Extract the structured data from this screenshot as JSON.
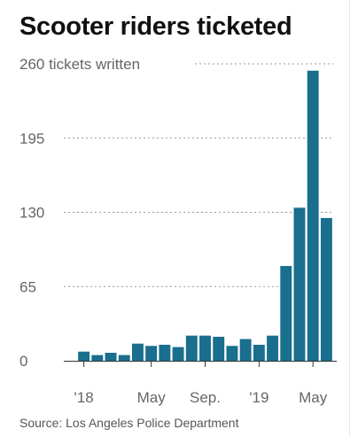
{
  "title": "Scooter riders ticketed",
  "source": "Source: Los Angeles Police Department",
  "colors": {
    "bar": "#1a6e8e",
    "grid": "#999999",
    "text": "#666666"
  },
  "chart_data": {
    "type": "bar",
    "title": "Scooter riders ticketed",
    "ylim": [
      0,
      260
    ],
    "yticks": [
      {
        "value": 260,
        "label": "260 tickets written"
      },
      {
        "value": 195,
        "label": "195"
      },
      {
        "value": 130,
        "label": "130"
      },
      {
        "value": 65,
        "label": "65"
      },
      {
        "value": 0,
        "label": "0"
      }
    ],
    "x_tick_labels": [
      {
        "index": 0,
        "label": "'18"
      },
      {
        "index": 5,
        "label": "May"
      },
      {
        "index": 9,
        "label": "Sep."
      },
      {
        "index": 13,
        "label": "'19"
      },
      {
        "index": 17,
        "label": "May"
      }
    ],
    "values": [
      8,
      5,
      7,
      5,
      15,
      13,
      14,
      12,
      22,
      22,
      21,
      13,
      19,
      14,
      22,
      83,
      134,
      254,
      125
    ]
  }
}
